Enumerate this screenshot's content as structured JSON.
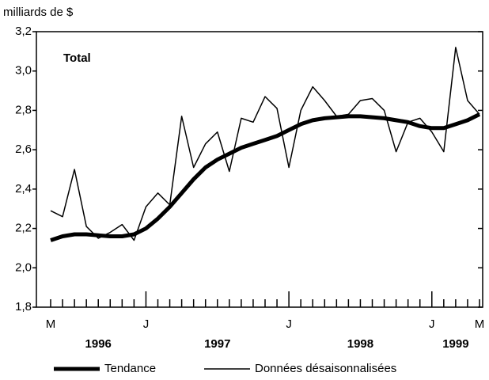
{
  "chart_data": {
    "type": "line",
    "y_axis_label": "milliards de $",
    "annotation": "Total",
    "categories": [
      "M",
      null,
      null,
      null,
      null,
      null,
      null,
      null,
      "J",
      null,
      null,
      null,
      null,
      null,
      null,
      null,
      null,
      null,
      null,
      null,
      "J",
      null,
      null,
      null,
      null,
      null,
      null,
      null,
      null,
      null,
      null,
      null,
      "J",
      null,
      null,
      null,
      "M"
    ],
    "years": [
      "1996",
      "1997",
      "1998",
      "1999"
    ],
    "series": [
      {
        "name": "Tendance",
        "color": "#000000",
        "width": "thick",
        "values": [
          2.14,
          2.16,
          2.17,
          2.17,
          2.165,
          2.16,
          2.16,
          2.17,
          2.2,
          2.25,
          2.31,
          2.38,
          2.45,
          2.51,
          2.55,
          2.58,
          2.61,
          2.63,
          2.65,
          2.67,
          2.7,
          2.73,
          2.75,
          2.76,
          2.765,
          2.77,
          2.77,
          2.765,
          2.76,
          2.75,
          2.74,
          2.72,
          2.71,
          2.71,
          2.73,
          2.75,
          2.78
        ]
      },
      {
        "name": "Données désaisonnalisées",
        "color": "#000000",
        "width": "thin",
        "values": [
          2.29,
          2.26,
          2.5,
          2.21,
          2.15,
          2.18,
          2.22,
          2.14,
          2.31,
          2.38,
          2.32,
          2.77,
          2.51,
          2.63,
          2.69,
          2.49,
          2.76,
          2.74,
          2.87,
          2.81,
          2.51,
          2.8,
          2.92,
          2.85,
          2.77,
          2.78,
          2.85,
          2.86,
          2.8,
          2.59,
          2.74,
          2.76,
          2.69,
          2.59,
          3.12,
          2.85,
          2.78
        ]
      }
    ],
    "ylim": [
      1.8,
      3.2
    ],
    "yticks": [
      {
        "value": 1.8,
        "label": "1,8"
      },
      {
        "value": 2.0,
        "label": "2,0"
      },
      {
        "value": 2.2,
        "label": "2,2"
      },
      {
        "value": 2.4,
        "label": "2,4"
      },
      {
        "value": 2.6,
        "label": "2,6"
      },
      {
        "value": 2.8,
        "label": "2,8"
      },
      {
        "value": 3.0,
        "label": "3,0"
      },
      {
        "value": 3.2,
        "label": "3,2"
      }
    ]
  }
}
